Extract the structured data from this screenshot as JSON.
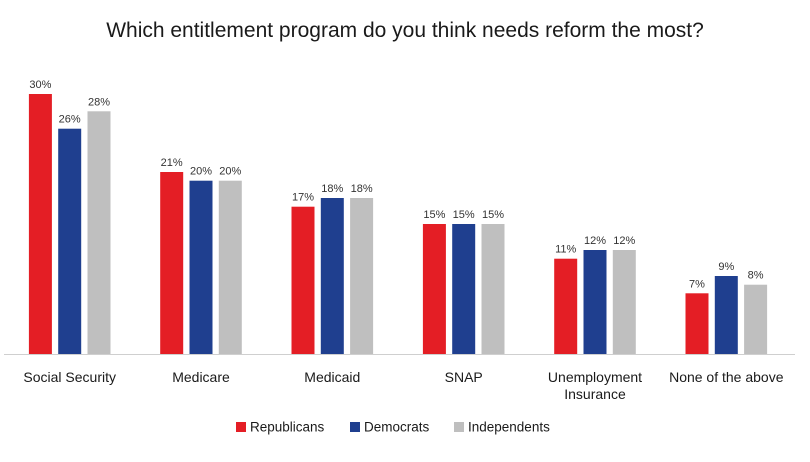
{
  "chart_data": {
    "type": "bar",
    "title": "Which entitlement program do you think needs reform the most?",
    "categories": [
      [
        "Social Security"
      ],
      [
        "Medicare"
      ],
      [
        "Medicaid"
      ],
      [
        "SNAP"
      ],
      [
        "Unemployment",
        "Insurance"
      ],
      [
        "None of the above"
      ]
    ],
    "series": [
      {
        "name": "Republicans",
        "color": "#e41e25",
        "values": [
          30,
          21,
          17,
          15,
          11,
          7
        ],
        "labels": [
          "30%",
          "21%",
          "17%",
          "15%",
          "11%",
          "7%"
        ]
      },
      {
        "name": "Democrats",
        "color": "#1f3f8f",
        "values": [
          26,
          20,
          18,
          15,
          12,
          9
        ],
        "labels": [
          "26%",
          "20%",
          "18%",
          "15%",
          "12%",
          "9%"
        ]
      },
      {
        "name": "Independents",
        "color": "#bfbfbf",
        "values": [
          28,
          20,
          18,
          15,
          12,
          8
        ],
        "labels": [
          "28%",
          "20%",
          "18%",
          "15%",
          "12%",
          "8%"
        ]
      }
    ],
    "ylim": [
      0,
      30
    ],
    "xlabel": "",
    "ylabel": "",
    "grid": false,
    "legend_position": "bottom-center"
  }
}
